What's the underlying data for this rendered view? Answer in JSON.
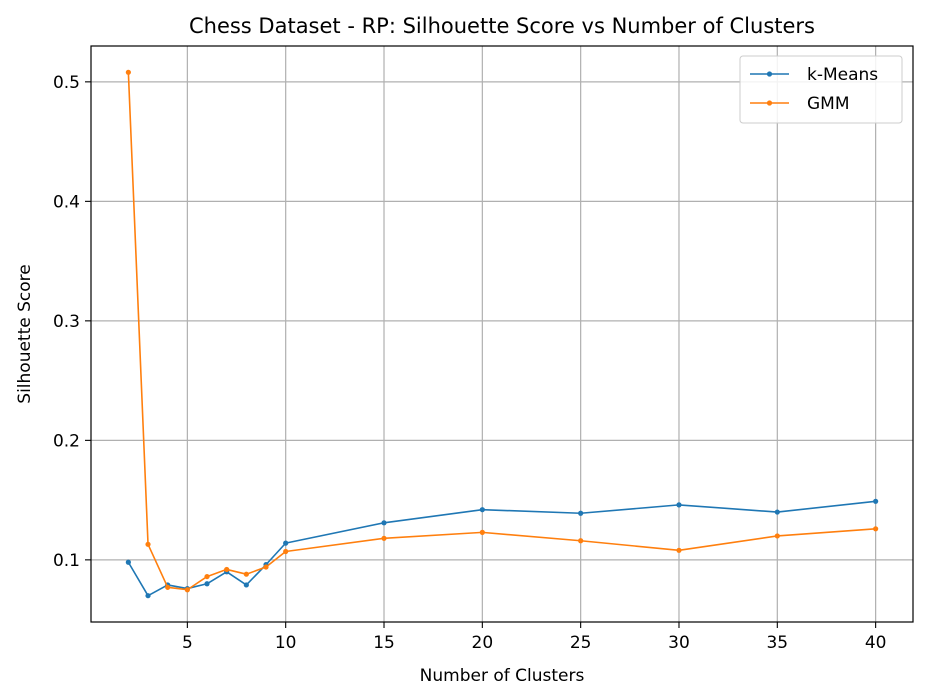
{
  "chart_data": {
    "type": "line",
    "title": "Chess Dataset - RP: Silhouette Score vs Number of Clusters",
    "xlabel": "Number of Clusters",
    "ylabel": "Silhouette Score",
    "xlim": [
      0.1,
      41.9
    ],
    "ylim": [
      0.048,
      0.53
    ],
    "xticks": [
      5,
      10,
      15,
      20,
      25,
      30,
      35,
      40
    ],
    "yticks": [
      0.1,
      0.2,
      0.3,
      0.4,
      0.5
    ],
    "grid": true,
    "legend_position": "top-right",
    "x": [
      2,
      3,
      4,
      5,
      6,
      7,
      8,
      9,
      10,
      15,
      20,
      25,
      30,
      35,
      40
    ],
    "series": [
      {
        "name": "k-Means",
        "color": "#1f77b4",
        "values": [
          0.098,
          0.07,
          0.079,
          0.076,
          0.08,
          0.09,
          0.079,
          0.096,
          0.114,
          0.131,
          0.142,
          0.139,
          0.146,
          0.14,
          0.149
        ]
      },
      {
        "name": "GMM",
        "color": "#ff7f0e",
        "values": [
          0.508,
          0.113,
          0.077,
          0.075,
          0.086,
          0.092,
          0.088,
          0.094,
          0.107,
          0.118,
          0.123,
          0.116,
          0.108,
          0.12,
          0.126
        ]
      }
    ]
  }
}
